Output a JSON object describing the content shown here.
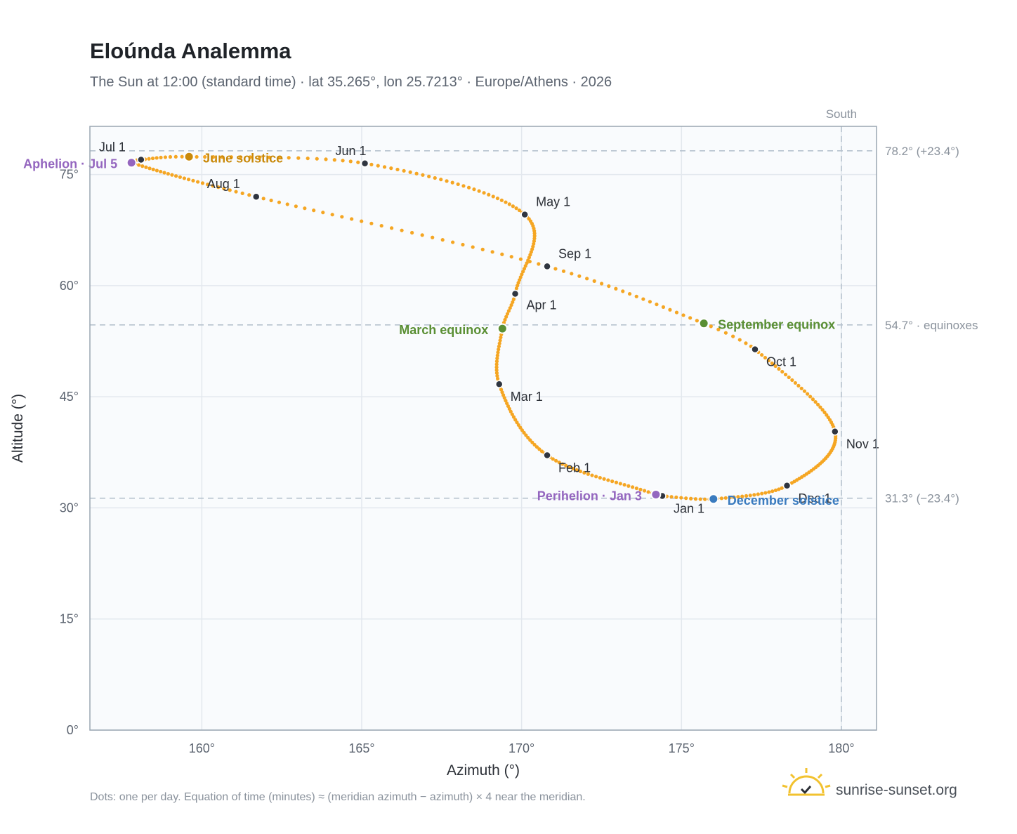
{
  "title": "Eloúnda Analemma",
  "subtitle": "The Sun at 12:00 (standard time) · lat 35.265°, lon 25.7213° · Europe/Athens · 2026",
  "footnote": "Dots: one per day. Equation of time (minutes) ≈ (meridian azimuth − azimuth) × 4 near the meridian.",
  "brand": "sunrise-sunset.org",
  "chart_data": {
    "type": "scatter",
    "xlabel": "Azimuth (°)",
    "ylabel": "Altitude (°)",
    "xlim": [
      156.5,
      181.1
    ],
    "ylim": [
      0,
      81.5
    ],
    "x_ticks": [
      160,
      165,
      170,
      175,
      180
    ],
    "x_tick_labels": [
      "160°",
      "165°",
      "170°",
      "175°",
      "180°"
    ],
    "y_ticks": [
      0,
      15,
      30,
      45,
      60,
      75
    ],
    "y_tick_labels": [
      "0°",
      "15°",
      "30°",
      "45°",
      "60°",
      "75°"
    ],
    "grid": true,
    "colors": {
      "path": "#f5a623",
      "marker": "#2f3540",
      "june_solstice": "#c98a0c",
      "december_solstice": "#3a7bbf",
      "equinox": "#5a8f34",
      "apsis": "#9466bf",
      "reference_line": "#b6c2ce",
      "plot_bg": "#f9fbfd",
      "frame": "#9aa6b2",
      "grid": "#e3e8ee"
    },
    "south_line": {
      "azimuth": 180,
      "label": "South"
    },
    "reference_lines": [
      {
        "altitude": 78.2,
        "label": "78.2° (+23.4°)"
      },
      {
        "altitude": 54.7,
        "label": "54.7° · equinoxes"
      },
      {
        "altitude": 31.3,
        "label": "31.3° (−23.4°)"
      }
    ],
    "month_markers": [
      {
        "label": "Jan 1",
        "az": 174.4,
        "alt": 31.6
      },
      {
        "label": "Feb 1",
        "az": 170.8,
        "alt": 37.1
      },
      {
        "label": "Mar 1",
        "az": 169.3,
        "alt": 46.7
      },
      {
        "label": "Apr 1",
        "az": 169.8,
        "alt": 58.9
      },
      {
        "label": "May 1",
        "az": 170.1,
        "alt": 69.6
      },
      {
        "label": "Jun 1",
        "az": 165.1,
        "alt": 76.5
      },
      {
        "label": "Jul 1",
        "az": 158.1,
        "alt": 77.0
      },
      {
        "label": "Aug 1",
        "az": 161.7,
        "alt": 72.0
      },
      {
        "label": "Sep 1",
        "az": 170.8,
        "alt": 62.6
      },
      {
        "label": "Oct 1",
        "az": 177.3,
        "alt": 51.4
      },
      {
        "label": "Nov 1",
        "az": 179.8,
        "alt": 40.3
      },
      {
        "label": "Dec 1",
        "az": 178.3,
        "alt": 33.0
      }
    ],
    "events": [
      {
        "label": "June solstice",
        "az": 159.6,
        "alt": 77.4,
        "color": "#c98a0c"
      },
      {
        "label": "December solstice",
        "az": 176.0,
        "alt": 31.2,
        "color": "#3a7bbf"
      },
      {
        "label": "March equinox",
        "az": 169.4,
        "alt": 54.2,
        "color": "#5a8f34"
      },
      {
        "label": "September equinox",
        "az": 175.7,
        "alt": 54.9,
        "color": "#5a8f34"
      },
      {
        "label": "Aphelion · Jul 5",
        "az": 157.8,
        "alt": 76.6,
        "color": "#9466bf"
      },
      {
        "label": "Perihelion · Jan 3",
        "az": 174.2,
        "alt": 31.8,
        "color": "#9466bf"
      }
    ],
    "analemma_anchor_points": [
      {
        "day": 1,
        "az": 174.4,
        "alt": 31.6
      },
      {
        "day": 3,
        "az": 174.2,
        "alt": 31.8
      },
      {
        "day": 32,
        "az": 170.8,
        "alt": 37.1
      },
      {
        "day": 60,
        "az": 169.3,
        "alt": 46.7
      },
      {
        "day": 79,
        "az": 169.4,
        "alt": 54.2
      },
      {
        "day": 91,
        "az": 169.8,
        "alt": 58.9
      },
      {
        "day": 121,
        "az": 170.1,
        "alt": 69.6
      },
      {
        "day": 152,
        "az": 165.1,
        "alt": 76.5
      },
      {
        "day": 172,
        "az": 159.6,
        "alt": 77.4
      },
      {
        "day": 182,
        "az": 158.1,
        "alt": 77.0
      },
      {
        "day": 186,
        "az": 157.8,
        "alt": 76.6
      },
      {
        "day": 213,
        "az": 161.7,
        "alt": 72.0
      },
      {
        "day": 244,
        "az": 170.8,
        "alt": 62.6
      },
      {
        "day": 266,
        "az": 175.7,
        "alt": 54.9
      },
      {
        "day": 274,
        "az": 177.3,
        "alt": 51.4
      },
      {
        "day": 305,
        "az": 179.8,
        "alt": 40.3
      },
      {
        "day": 335,
        "az": 178.3,
        "alt": 33.0
      },
      {
        "day": 355,
        "az": 176.0,
        "alt": 31.2
      },
      {
        "day": 366,
        "az": 174.4,
        "alt": 31.6
      }
    ]
  }
}
